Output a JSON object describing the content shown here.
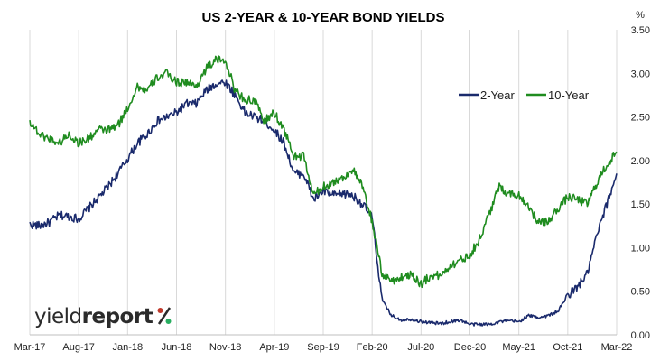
{
  "chart_data": {
    "type": "line",
    "title": "US 2-YEAR & 10-YEAR BOND YIELDS",
    "y_unit": "%",
    "ylim": [
      0.0,
      3.5
    ],
    "y_ticks": [
      "0.00",
      "0.50",
      "1.00",
      "1.50",
      "2.00",
      "2.50",
      "3.00",
      "3.50"
    ],
    "x_ticks": [
      "Mar-17",
      "Aug-17",
      "Jan-18",
      "Jun-18",
      "Nov-18",
      "Apr-19",
      "Sep-19",
      "Feb-20",
      "Jul-20",
      "Dec-20",
      "May-21",
      "Oct-21",
      "Mar-22"
    ],
    "grid": "vertical",
    "legend_position": "top-right",
    "colors": {
      "two_year": "#1a2a6c",
      "ten_year": "#1f8c1f"
    },
    "x_start": "2017-03",
    "x_end": "2022-03",
    "series": [
      {
        "name": "2-Year",
        "points": [
          [
            "2017-03",
            1.27
          ],
          [
            "2017-04",
            1.25
          ],
          [
            "2017-05",
            1.29
          ],
          [
            "2017-06",
            1.37
          ],
          [
            "2017-07",
            1.36
          ],
          [
            "2017-08",
            1.33
          ],
          [
            "2017-09",
            1.45
          ],
          [
            "2017-10",
            1.57
          ],
          [
            "2017-11",
            1.7
          ],
          [
            "2017-12",
            1.85
          ],
          [
            "2018-01",
            2.02
          ],
          [
            "2018-02",
            2.2
          ],
          [
            "2018-03",
            2.3
          ],
          [
            "2018-04",
            2.45
          ],
          [
            "2018-05",
            2.5
          ],
          [
            "2018-06",
            2.55
          ],
          [
            "2018-07",
            2.65
          ],
          [
            "2018-08",
            2.65
          ],
          [
            "2018-09",
            2.8
          ],
          [
            "2018-10",
            2.88
          ],
          [
            "2018-11",
            2.9
          ],
          [
            "2018-12",
            2.75
          ],
          [
            "2019-01",
            2.55
          ],
          [
            "2019-02",
            2.5
          ],
          [
            "2019-03",
            2.45
          ],
          [
            "2019-04",
            2.35
          ],
          [
            "2019-05",
            2.2
          ],
          [
            "2019-06",
            1.85
          ],
          [
            "2019-07",
            1.85
          ],
          [
            "2019-08",
            1.55
          ],
          [
            "2019-09",
            1.65
          ],
          [
            "2019-10",
            1.6
          ],
          [
            "2019-11",
            1.62
          ],
          [
            "2019-12",
            1.6
          ],
          [
            "2020-01",
            1.5
          ],
          [
            "2020-02",
            1.35
          ],
          [
            "2020-03",
            0.4
          ],
          [
            "2020-04",
            0.22
          ],
          [
            "2020-05",
            0.17
          ],
          [
            "2020-06",
            0.18
          ],
          [
            "2020-07",
            0.15
          ],
          [
            "2020-08",
            0.14
          ],
          [
            "2020-09",
            0.13
          ],
          [
            "2020-10",
            0.15
          ],
          [
            "2020-11",
            0.17
          ],
          [
            "2020-12",
            0.12
          ],
          [
            "2021-01",
            0.12
          ],
          [
            "2021-02",
            0.12
          ],
          [
            "2021-03",
            0.15
          ],
          [
            "2021-04",
            0.16
          ],
          [
            "2021-05",
            0.15
          ],
          [
            "2021-06",
            0.22
          ],
          [
            "2021-07",
            0.2
          ],
          [
            "2021-08",
            0.22
          ],
          [
            "2021-09",
            0.27
          ],
          [
            "2021-10",
            0.45
          ],
          [
            "2021-11",
            0.55
          ],
          [
            "2021-12",
            0.7
          ],
          [
            "2022-01",
            1.15
          ],
          [
            "2022-02",
            1.5
          ],
          [
            "2022-03",
            1.85
          ]
        ]
      },
      {
        "name": "10-Year",
        "points": [
          [
            "2017-03",
            2.45
          ],
          [
            "2017-04",
            2.3
          ],
          [
            "2017-05",
            2.25
          ],
          [
            "2017-06",
            2.2
          ],
          [
            "2017-07",
            2.3
          ],
          [
            "2017-08",
            2.2
          ],
          [
            "2017-09",
            2.25
          ],
          [
            "2017-10",
            2.35
          ],
          [
            "2017-11",
            2.35
          ],
          [
            "2017-12",
            2.4
          ],
          [
            "2018-01",
            2.6
          ],
          [
            "2018-02",
            2.85
          ],
          [
            "2018-03",
            2.8
          ],
          [
            "2018-04",
            2.95
          ],
          [
            "2018-05",
            3.0
          ],
          [
            "2018-06",
            2.9
          ],
          [
            "2018-07",
            2.9
          ],
          [
            "2018-08",
            2.85
          ],
          [
            "2018-09",
            3.05
          ],
          [
            "2018-10",
            3.15
          ],
          [
            "2018-11",
            3.15
          ],
          [
            "2018-12",
            2.8
          ],
          [
            "2019-01",
            2.7
          ],
          [
            "2019-02",
            2.68
          ],
          [
            "2019-03",
            2.45
          ],
          [
            "2019-04",
            2.55
          ],
          [
            "2019-05",
            2.35
          ],
          [
            "2019-06",
            2.05
          ],
          [
            "2019-07",
            2.05
          ],
          [
            "2019-08",
            1.6
          ],
          [
            "2019-09",
            1.7
          ],
          [
            "2019-10",
            1.75
          ],
          [
            "2019-11",
            1.8
          ],
          [
            "2019-12",
            1.9
          ],
          [
            "2020-01",
            1.7
          ],
          [
            "2020-02",
            1.3
          ],
          [
            "2020-03",
            0.7
          ],
          [
            "2020-04",
            0.62
          ],
          [
            "2020-05",
            0.66
          ],
          [
            "2020-06",
            0.7
          ],
          [
            "2020-07",
            0.58
          ],
          [
            "2020-08",
            0.68
          ],
          [
            "2020-09",
            0.68
          ],
          [
            "2020-10",
            0.8
          ],
          [
            "2020-11",
            0.85
          ],
          [
            "2020-12",
            0.92
          ],
          [
            "2021-01",
            1.1
          ],
          [
            "2021-02",
            1.4
          ],
          [
            "2021-03",
            1.7
          ],
          [
            "2021-04",
            1.62
          ],
          [
            "2021-05",
            1.6
          ],
          [
            "2021-06",
            1.48
          ],
          [
            "2021-07",
            1.28
          ],
          [
            "2021-08",
            1.3
          ],
          [
            "2021-09",
            1.45
          ],
          [
            "2021-10",
            1.58
          ],
          [
            "2021-11",
            1.55
          ],
          [
            "2021-12",
            1.5
          ],
          [
            "2022-01",
            1.75
          ],
          [
            "2022-02",
            1.95
          ],
          [
            "2022-03",
            2.1
          ]
        ]
      }
    ]
  },
  "logo": {
    "word_light": "yield",
    "word_bold": "report",
    "symbol": "%"
  }
}
